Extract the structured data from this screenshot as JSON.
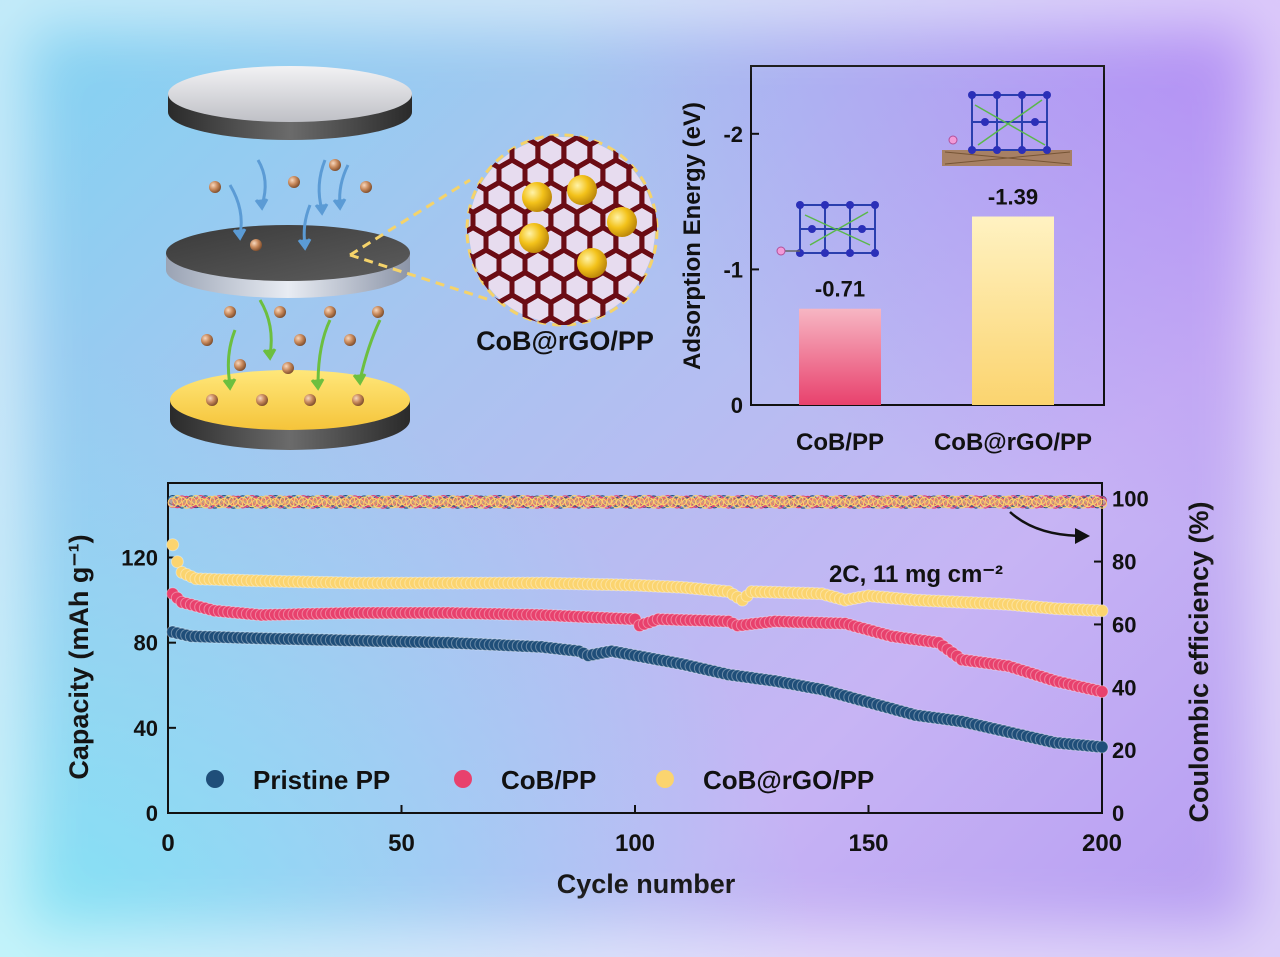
{
  "schematic": {
    "zoom_label": "CoB@rGO/PP"
  },
  "colors": {
    "pristine": "#1f4e79",
    "cob": "#e8416d",
    "cob_rgo": "#fbd46f",
    "inset_cob_top": "#f7b6c3",
    "inset_cob_rgo_top": "#fff2c2"
  },
  "chart_data": [
    {
      "type": "bar",
      "categories": [
        "CoB/PP",
        "CoB@rGO/PP"
      ],
      "values": [
        -0.71,
        -1.39
      ],
      "value_labels": [
        "-0.71",
        "-1.39"
      ],
      "ylabel": "Adsorption Energy (eV)",
      "ylim": [
        0,
        -2.5
      ],
      "y_ticks": [
        0,
        -1,
        -2
      ],
      "y_tick_labels": [
        "0",
        "-1",
        "-2"
      ],
      "inverted_y": true
    },
    {
      "type": "scatter",
      "xlabel": "Cycle number",
      "ylabel": "Capacity (mAh g⁻¹)",
      "y2label": "Coulombic efficiency (%)",
      "xlim": [
        0,
        200
      ],
      "ylim": [
        0,
        155
      ],
      "y2lim": [
        0,
        105
      ],
      "x_ticks": [
        0,
        50,
        100,
        150,
        200
      ],
      "x_tick_labels": [
        "0",
        "50",
        "100",
        "150",
        "200"
      ],
      "y_ticks": [
        0,
        40,
        80,
        120
      ],
      "y_tick_labels": [
        "0",
        "40",
        "80",
        "120"
      ],
      "y2_ticks": [
        0,
        20,
        40,
        60,
        80,
        100
      ],
      "y2_tick_labels": [
        "0",
        "20",
        "40",
        "60",
        "80",
        "100"
      ],
      "annotation": "2C, 11 mg cm⁻²",
      "legend_position": "bottom-left",
      "series": [
        {
          "name": "Pristine PP",
          "capacity_points": [
            [
              1,
              85
            ],
            [
              5,
              83
            ],
            [
              20,
              82
            ],
            [
              40,
              81
            ],
            [
              60,
              80
            ],
            [
              80,
              78
            ],
            [
              88,
              76
            ],
            [
              90,
              74
            ],
            [
              95,
              76
            ],
            [
              100,
              74
            ],
            [
              110,
              70
            ],
            [
              120,
              65
            ],
            [
              130,
              62
            ],
            [
              140,
              58
            ],
            [
              150,
              52
            ],
            [
              160,
              46
            ],
            [
              170,
              43
            ],
            [
              180,
              38
            ],
            [
              190,
              33
            ],
            [
              200,
              31
            ]
          ],
          "coulombic_efficiency": 99
        },
        {
          "name": "CoB/PP",
          "capacity_points": [
            [
              1,
              103
            ],
            [
              3,
              99
            ],
            [
              10,
              95
            ],
            [
              20,
              93
            ],
            [
              40,
              94
            ],
            [
              60,
              94
            ],
            [
              80,
              93
            ],
            [
              100,
              91
            ],
            [
              101,
              88
            ],
            [
              105,
              91
            ],
            [
              120,
              90
            ],
            [
              122,
              88
            ],
            [
              130,
              90
            ],
            [
              145,
              89
            ],
            [
              150,
              86
            ],
            [
              155,
              83
            ],
            [
              165,
              80
            ],
            [
              170,
              72
            ],
            [
              180,
              69
            ],
            [
              190,
              62
            ],
            [
              200,
              57
            ]
          ],
          "coulombic_efficiency": 99
        },
        {
          "name": "CoB@rGO/PP",
          "capacity_points": [
            [
              1,
              126
            ],
            [
              2,
              118
            ],
            [
              3,
              113
            ],
            [
              6,
              110
            ],
            [
              20,
              109
            ],
            [
              40,
              108
            ],
            [
              60,
              108
            ],
            [
              80,
              108
            ],
            [
              100,
              107
            ],
            [
              110,
              106
            ],
            [
              120,
              104
            ],
            [
              123,
              100
            ],
            [
              125,
              104
            ],
            [
              140,
              103
            ],
            [
              145,
              100
            ],
            [
              150,
              102
            ],
            [
              160,
              100
            ],
            [
              170,
              99
            ],
            [
              180,
              98
            ],
            [
              190,
              96
            ],
            [
              200,
              95
            ]
          ],
          "coulombic_efficiency": 99
        }
      ]
    }
  ]
}
